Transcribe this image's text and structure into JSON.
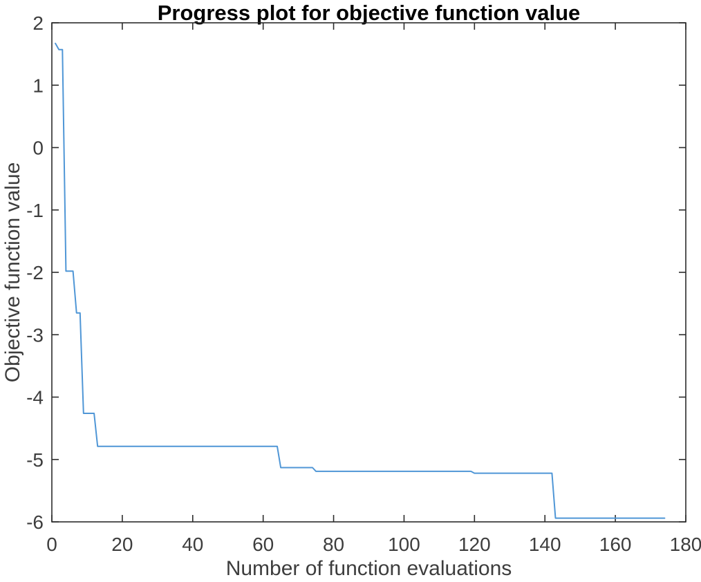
{
  "chart_data": {
    "type": "line",
    "title": "Progress plot for objective function value",
    "xlabel": "Number of function evaluations",
    "ylabel": "Objective function value",
    "xlim": [
      0,
      180
    ],
    "ylim": [
      -6,
      2
    ],
    "x_ticks": [
      0,
      20,
      40,
      60,
      80,
      100,
      120,
      140,
      160,
      180
    ],
    "y_ticks": [
      -6,
      -5,
      -4,
      -3,
      -2,
      -1,
      0,
      1,
      2
    ],
    "grid": false,
    "legend": "none",
    "box": "on",
    "tick_direction": "in",
    "background_color": "#ffffff",
    "axis_color": "#2b2b2b",
    "text_color": "#3d3d3d",
    "line_color": "#4f96d6",
    "series": [
      {
        "name": "objective-function-value",
        "points": [
          [
            1,
            1.67
          ],
          [
            2,
            1.57
          ],
          [
            3,
            1.57
          ],
          [
            4,
            -1.98
          ],
          [
            6,
            -1.98
          ],
          [
            7,
            -2.65
          ],
          [
            8,
            -2.65
          ],
          [
            9,
            -4.26
          ],
          [
            12,
            -4.26
          ],
          [
            13,
            -4.79
          ],
          [
            64,
            -4.79
          ],
          [
            65,
            -5.13
          ],
          [
            74,
            -5.13
          ],
          [
            75,
            -5.19
          ],
          [
            119,
            -5.19
          ],
          [
            120,
            -5.22
          ],
          [
            142,
            -5.22
          ],
          [
            143,
            -5.94
          ],
          [
            174,
            -5.94
          ]
        ]
      }
    ]
  }
}
